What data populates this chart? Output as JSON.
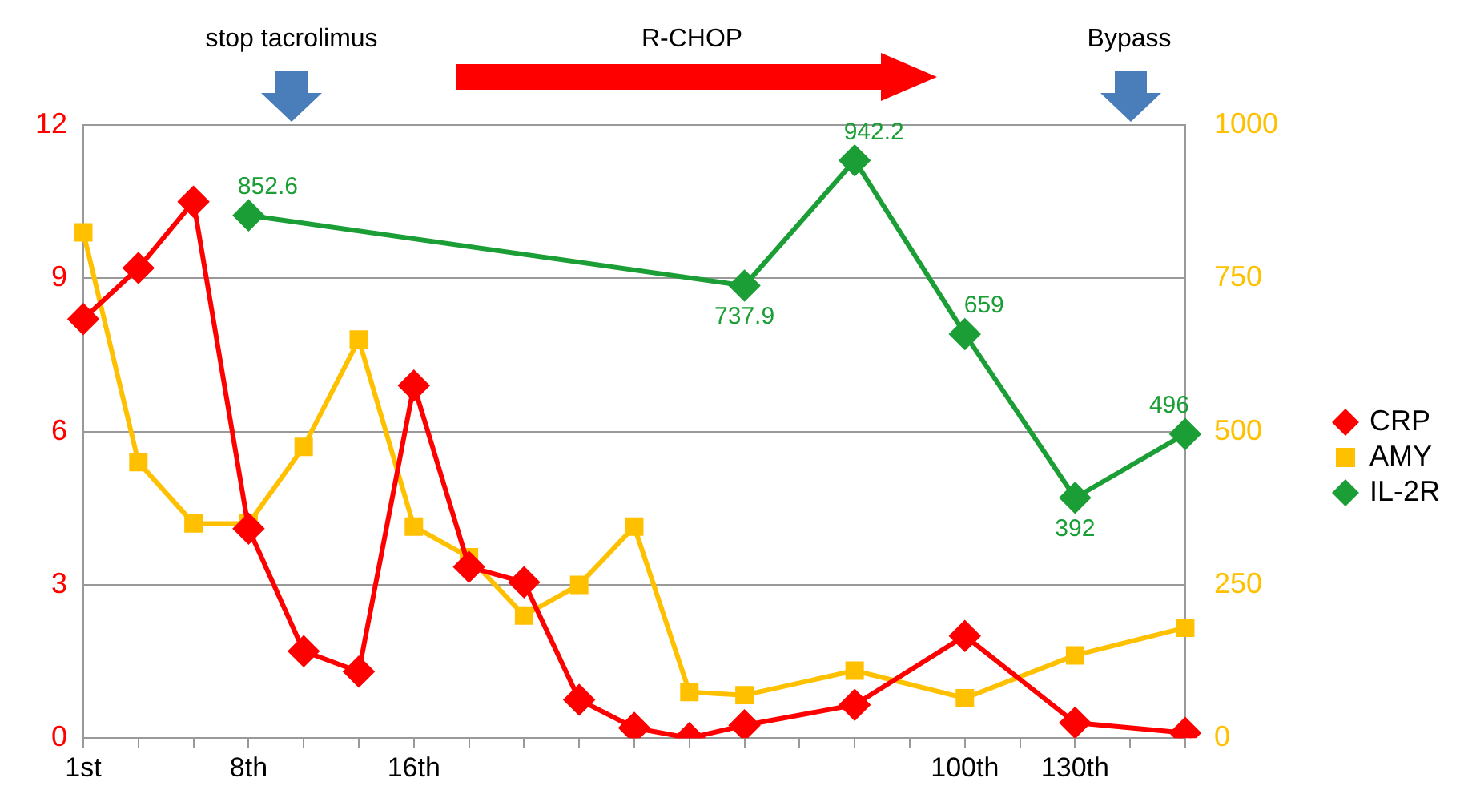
{
  "chart_data": {
    "type": "line",
    "categories": [
      "1st",
      null,
      null,
      "8th",
      null,
      null,
      "16th",
      null,
      null,
      null,
      null,
      null,
      null,
      null,
      null,
      null,
      "100th",
      null,
      "130th",
      null,
      null
    ],
    "series": [
      {
        "name": "CRP",
        "color": "#ff0000",
        "marker": "diamond",
        "values": [
          8.2,
          9.2,
          10.5,
          4.1,
          1.7,
          1.3,
          6.9,
          3.35,
          3.05,
          0.75,
          0.2,
          0.0,
          0.25,
          null,
          0.65,
          null,
          2.0,
          null,
          0.3,
          null,
          0.1
        ]
      },
      {
        "name": "AMY",
        "color": "#ffc000",
        "marker": "square",
        "axis": "y2",
        "values": [
          825,
          450,
          350,
          350,
          475,
          650,
          345,
          295,
          200,
          250,
          345,
          75,
          70,
          null,
          110,
          null,
          65,
          null,
          135,
          null,
          180
        ]
      },
      {
        "name": "IL-2R",
        "color": "#1a9e35",
        "marker": "diamond",
        "axis": "y2",
        "values": [
          null,
          null,
          null,
          852.6,
          null,
          null,
          null,
          null,
          null,
          null,
          null,
          null,
          737.9,
          null,
          942.2,
          null,
          659,
          null,
          392,
          null,
          496
        ],
        "value_labels": [
          null,
          null,
          null,
          "852.6",
          null,
          null,
          null,
          null,
          null,
          null,
          null,
          null,
          "737.9",
          null,
          "942.2",
          null,
          "659",
          null,
          "392",
          null,
          "496"
        ]
      }
    ],
    "ylim": [
      0,
      12
    ],
    "yticks": [
      0,
      3,
      6,
      9,
      12
    ],
    "y2lim": [
      0,
      1000
    ],
    "y2ticks": [
      0,
      250,
      500,
      750,
      1000
    ],
    "grid": "y",
    "legend": "right",
    "line_style": "solid",
    "annotations": [
      "stop tacrolimus",
      "R-CHOP",
      "Bypass"
    ]
  }
}
